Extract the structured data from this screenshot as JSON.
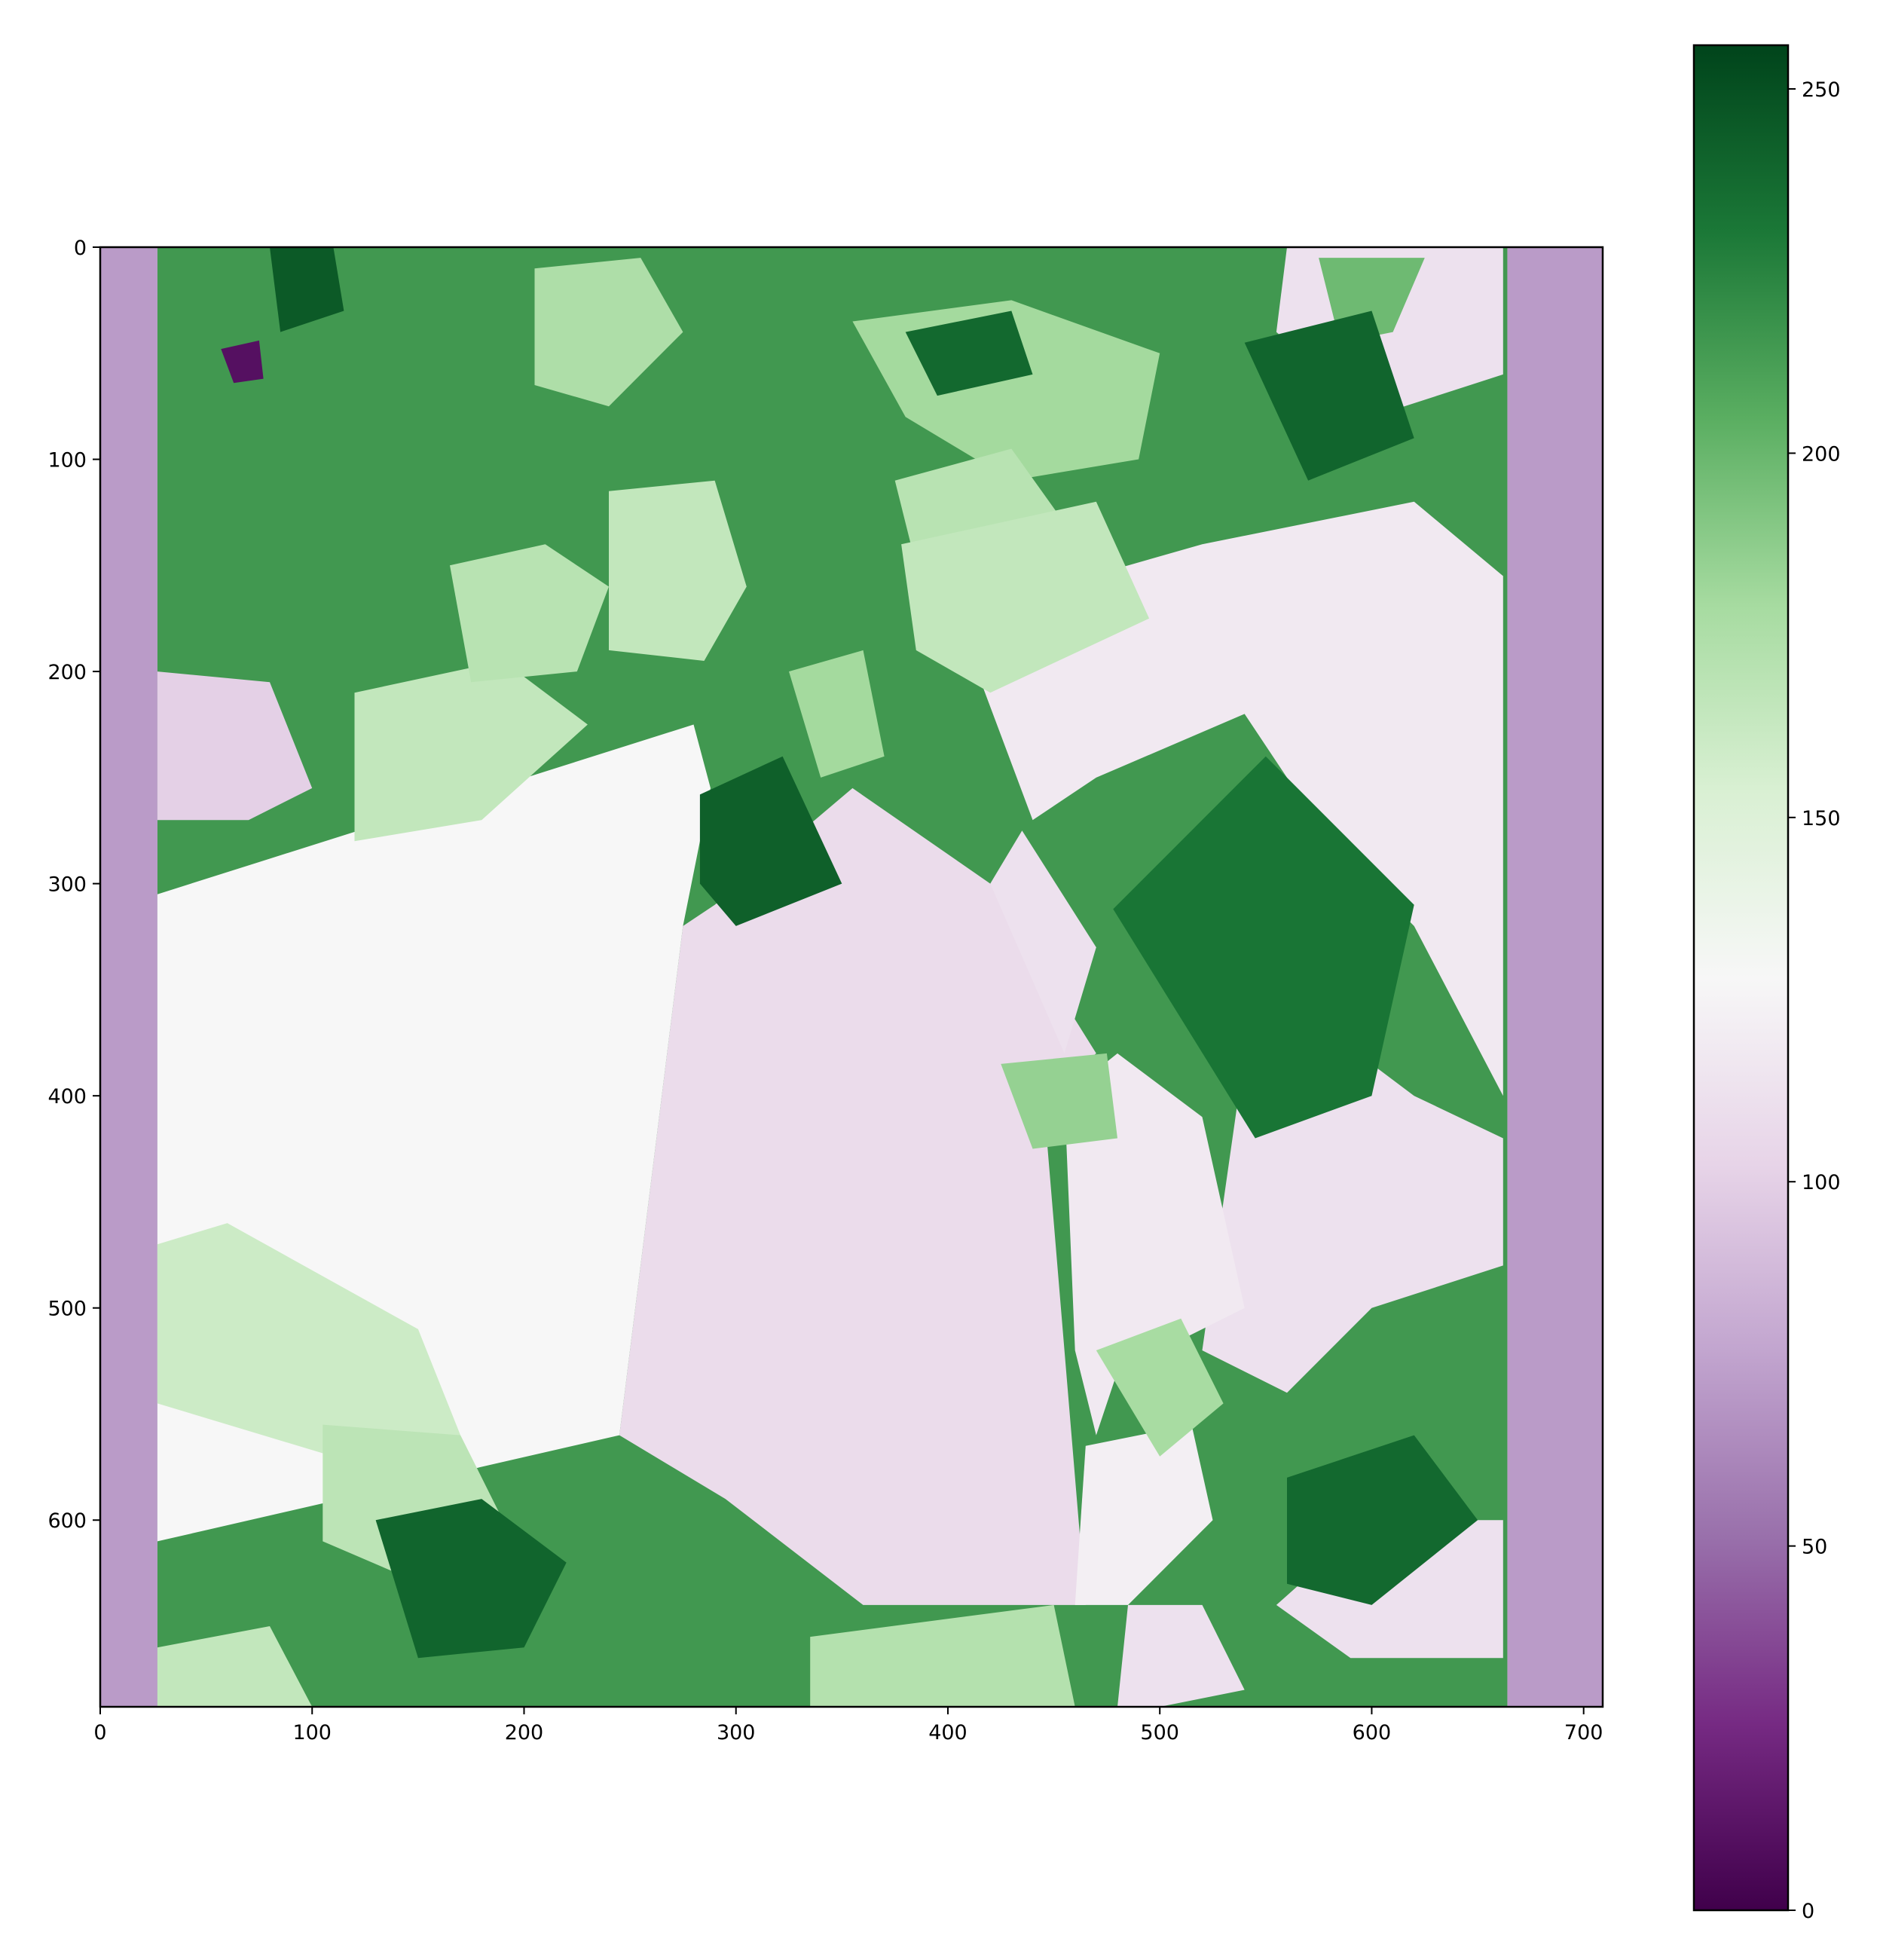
{
  "chart_data": {
    "type": "heatmap",
    "title": "",
    "xlabel": "",
    "ylabel": "",
    "colormap": "PRGn",
    "xlim": [
      0,
      709
    ],
    "ylim": [
      688,
      0
    ],
    "x_ticks": [
      0,
      100,
      200,
      300,
      400,
      500,
      600,
      700
    ],
    "y_ticks": [
      0,
      100,
      200,
      300,
      400,
      500,
      600
    ],
    "colorbar": {
      "range": [
        0,
        256
      ],
      "ticks": [
        0,
        50,
        100,
        150,
        200,
        250
      ]
    },
    "image_extent": {
      "cols": 709,
      "rows": 688
    },
    "padding_columns": {
      "left": [
        0,
        27
      ],
      "right": [
        664,
        709
      ],
      "value": 72
    },
    "regions": [
      {
        "kind": "rect",
        "x0": 27,
        "y0": 0,
        "x1": 664,
        "y1": 688,
        "value": 215
      },
      {
        "kind": "poly",
        "points": [
          [
            27,
            305
          ],
          [
            280,
            225
          ],
          [
            288,
            255
          ],
          [
            275,
            320
          ],
          [
            245,
            560
          ],
          [
            27,
            610
          ]
        ],
        "value": 128
      },
      {
        "kind": "poly",
        "points": [
          [
            245,
            560
          ],
          [
            275,
            320
          ],
          [
            290,
            310
          ],
          [
            355,
            255
          ],
          [
            420,
            300
          ],
          [
            470,
            380
          ],
          [
            445,
            400
          ],
          [
            465,
            640
          ],
          [
            360,
            640
          ],
          [
            295,
            590
          ]
        ],
        "value": 108
      },
      {
        "kind": "poly",
        "points": [
          [
            420,
            300
          ],
          [
            435,
            275
          ],
          [
            470,
            330
          ],
          [
            455,
            380
          ]
        ],
        "value": 112
      },
      {
        "kind": "poly",
        "points": [
          [
            410,
            190
          ],
          [
            450,
            160
          ],
          [
            520,
            140
          ],
          [
            620,
            120
          ],
          [
            662,
            155
          ],
          [
            662,
            400
          ],
          [
            620,
            320
          ],
          [
            580,
            280
          ],
          [
            540,
            220
          ],
          [
            470,
            250
          ],
          [
            440,
            270
          ]
        ],
        "value": 118
      },
      {
        "kind": "poly",
        "points": [
          [
            540,
            380
          ],
          [
            580,
            370
          ],
          [
            620,
            400
          ],
          [
            662,
            420
          ],
          [
            662,
            480
          ],
          [
            600,
            500
          ],
          [
            560,
            540
          ],
          [
            520,
            520
          ]
        ],
        "value": 112
      },
      {
        "kind": "poly",
        "points": [
          [
            455,
            400
          ],
          [
            480,
            380
          ],
          [
            520,
            410
          ],
          [
            540,
            500
          ],
          [
            480,
            530
          ],
          [
            470,
            560
          ],
          [
            460,
            520
          ]
        ],
        "value": 118
      },
      {
        "kind": "poly",
        "points": [
          [
            560,
            0
          ],
          [
            662,
            0
          ],
          [
            662,
            60
          ],
          [
            600,
            80
          ],
          [
            555,
            40
          ]
        ],
        "value": 112
      },
      {
        "kind": "poly",
        "points": [
          [
            27,
            200
          ],
          [
            80,
            205
          ],
          [
            100,
            255
          ],
          [
            70,
            270
          ],
          [
            27,
            270
          ]
        ],
        "value": 100
      },
      {
        "kind": "poly",
        "points": [
          [
            555,
            640
          ],
          [
            600,
            600
          ],
          [
            662,
            600
          ],
          [
            662,
            665
          ],
          [
            590,
            665
          ]
        ],
        "value": 112
      },
      {
        "kind": "poly",
        "points": [
          [
            465,
            565
          ],
          [
            515,
            555
          ],
          [
            525,
            600
          ],
          [
            485,
            640
          ],
          [
            460,
            640
          ]
        ],
        "value": 122
      },
      {
        "kind": "poly",
        "points": [
          [
            485,
            640
          ],
          [
            520,
            640
          ],
          [
            540,
            680
          ],
          [
            500,
            688
          ],
          [
            480,
            688
          ]
        ],
        "value": 112
      },
      {
        "kind": "poly",
        "points": [
          [
            120,
            210
          ],
          [
            190,
            195
          ],
          [
            230,
            225
          ],
          [
            180,
            270
          ],
          [
            120,
            280
          ]
        ],
        "value": 165
      },
      {
        "kind": "poly",
        "points": [
          [
            165,
            150
          ],
          [
            210,
            140
          ],
          [
            240,
            160
          ],
          [
            225,
            200
          ],
          [
            175,
            205
          ]
        ],
        "value": 170
      },
      {
        "kind": "poly",
        "points": [
          [
            205,
            10
          ],
          [
            255,
            5
          ],
          [
            275,
            40
          ],
          [
            240,
            75
          ],
          [
            205,
            65
          ]
        ],
        "value": 175
      },
      {
        "kind": "poly",
        "points": [
          [
            355,
            35
          ],
          [
            430,
            25
          ],
          [
            500,
            50
          ],
          [
            490,
            100
          ],
          [
            430,
            110
          ],
          [
            380,
            80
          ]
        ],
        "value": 180
      },
      {
        "kind": "poly",
        "points": [
          [
            375,
            110
          ],
          [
            430,
            95
          ],
          [
            455,
            130
          ],
          [
            440,
            180
          ],
          [
            390,
            170
          ]
        ],
        "value": 170
      },
      {
        "kind": "poly",
        "points": [
          [
            240,
            115
          ],
          [
            290,
            110
          ],
          [
            305,
            160
          ],
          [
            285,
            195
          ],
          [
            240,
            190
          ]
        ],
        "value": 165
      },
      {
        "kind": "poly",
        "points": [
          [
            27,
            470
          ],
          [
            60,
            460
          ],
          [
            150,
            510
          ],
          [
            170,
            560
          ],
          [
            110,
            570
          ],
          [
            27,
            545
          ]
        ],
        "value": 160
      },
      {
        "kind": "poly",
        "points": [
          [
            105,
            555
          ],
          [
            170,
            560
          ],
          [
            190,
            600
          ],
          [
            140,
            625
          ],
          [
            105,
            610
          ]
        ],
        "value": 168
      },
      {
        "kind": "poly",
        "points": [
          [
            27,
            660
          ],
          [
            80,
            650
          ],
          [
            100,
            688
          ],
          [
            27,
            688
          ]
        ],
        "value": 165
      },
      {
        "kind": "poly",
        "points": [
          [
            335,
            655
          ],
          [
            450,
            640
          ],
          [
            460,
            688
          ],
          [
            335,
            688
          ]
        ],
        "value": 172
      },
      {
        "kind": "poly",
        "points": [
          [
            325,
            200
          ],
          [
            360,
            190
          ],
          [
            370,
            240
          ],
          [
            340,
            250
          ]
        ],
        "value": 180
      },
      {
        "kind": "poly",
        "points": [
          [
            470,
            520
          ],
          [
            510,
            505
          ],
          [
            530,
            545
          ],
          [
            500,
            570
          ]
        ],
        "value": 178
      },
      {
        "kind": "poly",
        "points": [
          [
            425,
            385
          ],
          [
            475,
            380
          ],
          [
            480,
            420
          ],
          [
            440,
            425
          ]
        ],
        "value": 185
      },
      {
        "kind": "poly",
        "points": [
          [
            378,
            140
          ],
          [
            470,
            120
          ],
          [
            495,
            175
          ],
          [
            420,
            210
          ],
          [
            385,
            190
          ]
        ],
        "value": 165
      },
      {
        "kind": "poly",
        "points": [
          [
            575,
            5
          ],
          [
            625,
            5
          ],
          [
            610,
            40
          ],
          [
            585,
            45
          ]
        ],
        "value": 198
      },
      {
        "kind": "poly",
        "points": [
          [
            80,
            0
          ],
          [
            110,
            0
          ],
          [
            115,
            30
          ],
          [
            85,
            40
          ]
        ],
        "value": 245
      },
      {
        "kind": "poly",
        "points": [
          [
            380,
            40
          ],
          [
            430,
            30
          ],
          [
            440,
            60
          ],
          [
            395,
            70
          ]
        ],
        "value": 238
      },
      {
        "kind": "poly",
        "points": [
          [
            540,
            45
          ],
          [
            600,
            30
          ],
          [
            620,
            90
          ],
          [
            570,
            110
          ]
        ],
        "value": 240
      },
      {
        "kind": "poly",
        "points": [
          [
            130,
            600
          ],
          [
            180,
            590
          ],
          [
            220,
            620
          ],
          [
            200,
            660
          ],
          [
            150,
            665
          ]
        ],
        "value": 240
      },
      {
        "kind": "poly",
        "points": [
          [
            560,
            580
          ],
          [
            620,
            560
          ],
          [
            650,
            600
          ],
          [
            600,
            640
          ],
          [
            560,
            630
          ]
        ],
        "value": 238
      },
      {
        "kind": "poly",
        "points": [
          [
            283,
            258
          ],
          [
            322,
            240
          ],
          [
            350,
            300
          ],
          [
            300,
            320
          ],
          [
            283,
            300
          ]
        ],
        "value": 242
      },
      {
        "kind": "poly",
        "points": [
          [
            478,
            312
          ],
          [
            550,
            240
          ],
          [
            620,
            310
          ],
          [
            600,
            400
          ],
          [
            545,
            420
          ]
        ],
        "value": 232
      },
      {
        "kind": "poly",
        "points": [
          [
            57,
            48
          ],
          [
            75,
            44
          ],
          [
            77,
            62
          ],
          [
            63,
            64
          ]
        ],
        "value": 10
      }
    ]
  }
}
